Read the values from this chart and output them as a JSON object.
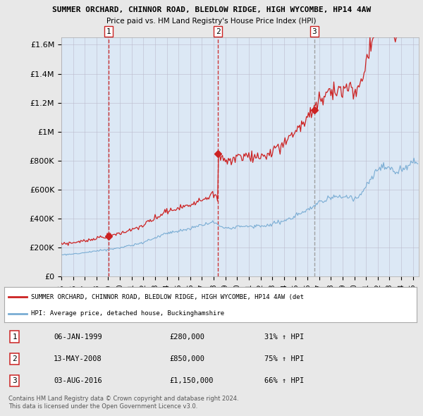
{
  "title1": "SUMMER ORCHARD, CHINNOR ROAD, BLEDLOW RIDGE, HIGH WYCOMBE, HP14 4AW",
  "title2": "Price paid vs. HM Land Registry's House Price Index (HPI)",
  "background_color": "#e8e8e8",
  "plot_bg_color": "#dce8f5",
  "sale_dates": [
    1999.02,
    2008.37,
    2016.59
  ],
  "sale_prices": [
    280000,
    850000,
    1150000
  ],
  "sale_labels": [
    "1",
    "2",
    "3"
  ],
  "sale_label_dates": [
    "06-JAN-1999",
    "13-MAY-2008",
    "03-AUG-2016"
  ],
  "sale_label_prices": [
    "£280,000",
    "£850,000",
    "£1,150,000"
  ],
  "sale_label_hpi": [
    "31% ↑ HPI",
    "75% ↑ HPI",
    "66% ↑ HPI"
  ],
  "hpi_color": "#7aadd4",
  "price_color": "#cc2222",
  "vline_color_red": "#cc2222",
  "vline_color_grey": "#999999",
  "ylim": [
    0,
    1650000
  ],
  "yticks": [
    0,
    200000,
    400000,
    600000,
    800000,
    1000000,
    1200000,
    1400000,
    1600000
  ],
  "ytick_labels": [
    "£0",
    "£200K",
    "£400K",
    "£600K",
    "£800K",
    "£1M",
    "£1.2M",
    "£1.4M",
    "£1.6M"
  ],
  "xlim_start": 1995.0,
  "xlim_end": 2025.5,
  "xticks": [
    1995,
    1996,
    1997,
    1998,
    1999,
    2000,
    2001,
    2002,
    2003,
    2004,
    2005,
    2006,
    2007,
    2008,
    2009,
    2010,
    2011,
    2012,
    2013,
    2014,
    2015,
    2016,
    2017,
    2018,
    2019,
    2020,
    2021,
    2022,
    2023,
    2024,
    2025
  ],
  "legend_line1": "SUMMER ORCHARD, CHINNOR ROAD, BLEDLOW RIDGE, HIGH WYCOMBE, HP14 4AW (det",
  "legend_line2": "HPI: Average price, detached house, Buckinghamshire",
  "footer1": "Contains HM Land Registry data © Crown copyright and database right 2024.",
  "footer2": "This data is licensed under the Open Government Licence v3.0."
}
